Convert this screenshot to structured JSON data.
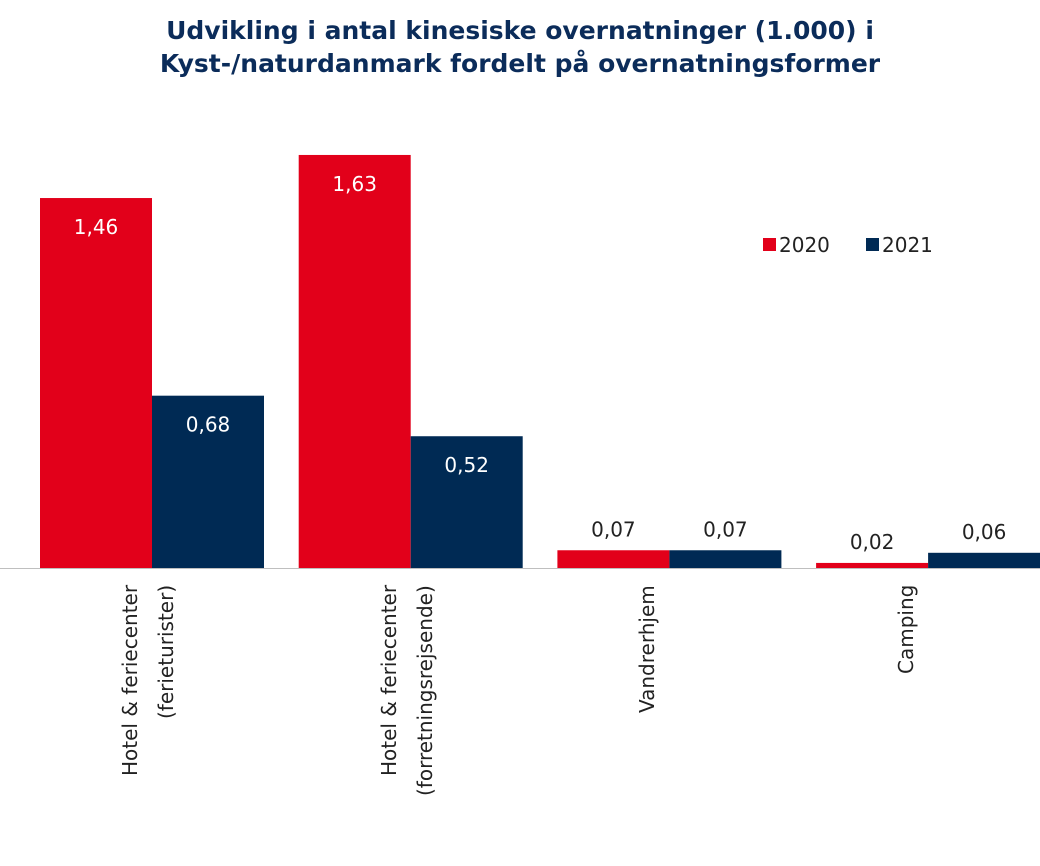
{
  "chart_data": {
    "type": "bar",
    "title": "Udvikling i antal kinesiske overnatninger (1.000) i Kyst-/naturdanmark fordelt på overnatningsformer",
    "categories": [
      "Hotel & feriecenter (ferieturister)",
      "Hotel & feriecenter (forretningsrejsende)",
      "Vandrerhjem",
      "Camping"
    ],
    "series": [
      {
        "name": "2020",
        "color": "#e2001a",
        "values": [
          1.46,
          1.63,
          0.07,
          0.02
        ],
        "value_labels": [
          "1,46",
          "1,63",
          "0,07",
          "0,02"
        ]
      },
      {
        "name": "2021",
        "color": "#002a54",
        "values": [
          0.68,
          0.52,
          0.07,
          0.06
        ],
        "value_labels": [
          "0,68",
          "0,52",
          "0,07",
          "0,06"
        ]
      }
    ],
    "legend": "upper right"
  }
}
